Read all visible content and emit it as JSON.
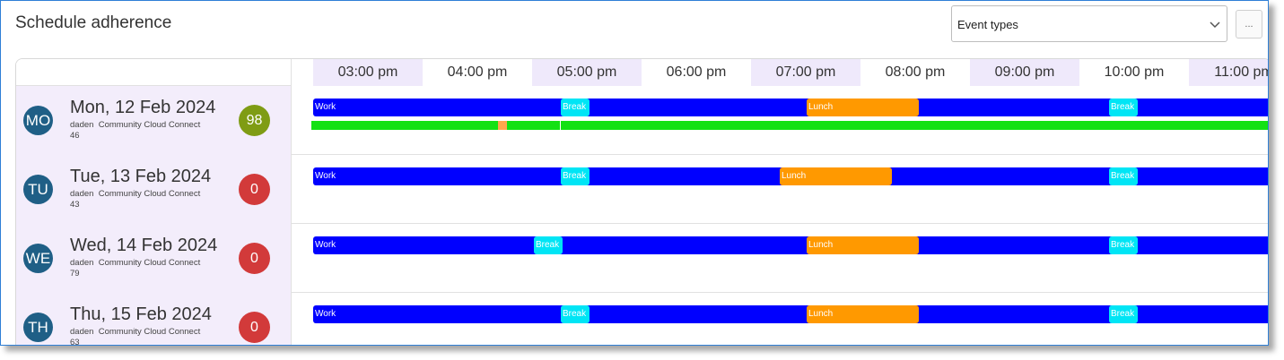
{
  "title": "Schedule adherence",
  "event_types": {
    "placeholder": "Event types"
  },
  "more_button": "...",
  "hours": [
    "03:00 pm",
    "04:00 pm",
    "05:00 pm",
    "06:00 pm",
    "07:00 pm",
    "08:00 pm",
    "09:00 pm",
    "10:00 pm",
    "11:00 pm"
  ],
  "rows": [
    {
      "initials": "MO",
      "date": "Mon, 12 Feb 2024",
      "user": "daden",
      "team": "Community Cloud Connect",
      "id": "46",
      "score": "98",
      "score_status": "good",
      "events": {
        "work": "Work",
        "break1": "Break",
        "lunch": "Lunch",
        "break2": "Break"
      }
    },
    {
      "initials": "TU",
      "date": "Tue, 13 Feb 2024",
      "user": "daden",
      "team": "Community Cloud Connect",
      "id": "43",
      "score": "0",
      "score_status": "bad",
      "events": {
        "work": "Work",
        "break1": "Break",
        "lunch": "Lunch",
        "break2": "Break"
      }
    },
    {
      "initials": "WE",
      "date": "Wed, 14 Feb 2024",
      "user": "daden",
      "team": "Community Cloud Connect",
      "id": "79",
      "score": "0",
      "score_status": "bad",
      "events": {
        "work": "Work",
        "break1": "Break",
        "lunch": "Lunch",
        "break2": "Break"
      }
    },
    {
      "initials": "TH",
      "date": "Thu, 15 Feb 2024",
      "user": "daden",
      "team": "Community Cloud Connect",
      "id": "63",
      "score": "0",
      "score_status": "bad",
      "events": {
        "work": "Work",
        "break1": "Break",
        "lunch": "Lunch",
        "break2": "Break"
      }
    }
  ],
  "colors": {
    "work": "#0000ff",
    "break": "#00e5f5",
    "lunch": "#ff9900",
    "adherent": "#13e113",
    "non_adherent": "#ffa64d",
    "score_good": "#7f9c14",
    "score_bad": "#d23a3a"
  }
}
